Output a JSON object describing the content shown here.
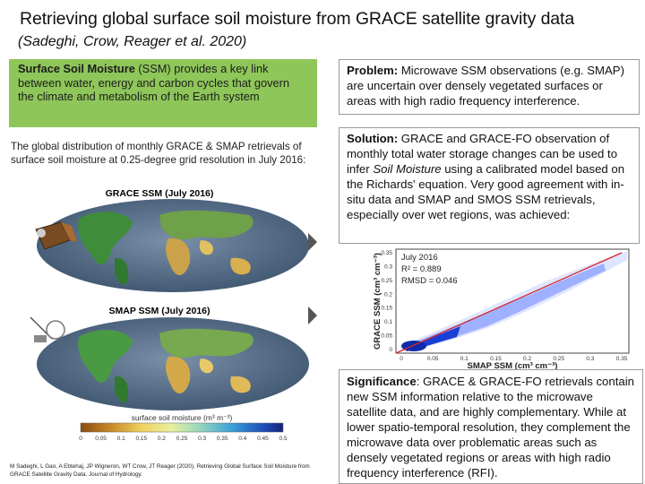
{
  "header": {
    "title": "Retrieving global surface soil moisture from GRACE satellite gravity data",
    "authors": "(Sadeghi, Crow, Reager et al. 2020)"
  },
  "intro": {
    "bold": "Surface Soil Moisture",
    "rest": " (SSM) provides a key link between water, energy and carbon cycles that govern the climate and metabolism of the Earth system"
  },
  "global": {
    "description": "The global distribution of monthly GRACE & SMAP retrievals of surface soil moisture at 0.25-degree grid resolution in July 2016:",
    "grace_map_label": "GRACE SSM (July 2016)",
    "smap_map_label": "SMAP SSM (July 2016)",
    "colorbar_title": "surface soil moisture (m³ m⁻³)",
    "colorbar_ticks": [
      "0",
      "0.05",
      "0.1",
      "0.15",
      "0.2",
      "0.25",
      "0.3",
      "0.35",
      "0.4",
      "0.45",
      "0.5"
    ]
  },
  "problem": {
    "bold": "Problem:",
    "rest": " Microwave SSM observations (e.g. SMAP) are uncertain over densely vegetated surfaces or areas with high radio frequency interference."
  },
  "solution": {
    "bold": "Solution:",
    "part1": " GRACE and GRACE-FO observation of monthly total water storage changes can be used to infer ",
    "italic": "Soil Moisture",
    "part2": " using a calibrated model based on the Richards' equation. Very good agreement with in-situ data and SMAP and SMOS SSM retrievals, especially over wet regions, was achieved:"
  },
  "scatter": {
    "month": "July 2016",
    "r2": "R² = 0.889",
    "rmsd": "RMSD = 0.046",
    "xlabel": "SMAP SSM (cm³ cm⁻³)",
    "ylabel": "GRACE SSM (cm³ cm⁻³)",
    "xticks": [
      "0",
      "0.05",
      "0.1",
      "0.15",
      "0.2",
      "0.25",
      "0.3",
      "0.35"
    ],
    "yticks": [
      "0",
      "0.05",
      "0.1",
      "0.15",
      "0.2",
      "0.25",
      "0.3",
      "0.35"
    ]
  },
  "significance": {
    "bold": "Significance",
    "rest": ": GRACE & GRACE-FO retrievals contain new SSM information relative to the microwave satellite data, and are highly complementary.  While at lower spatio-temporal resolution, they complement the microwave data over problematic areas such as densely vegetated regions or areas with high radio frequency interference (RFI)."
  },
  "citation": "M Sadeghi, L Gao, A Ebtehaj, JP Wigneron, WT Crow, JT Reager (2020). Retrieving Global Surface Soil Moisture from GRACE Satellite Gravity Data. Journal of Hydrology.",
  "colors": {
    "green_box": "#8fc65a",
    "ocean": "#5c7391",
    "fit_line": "#d9232a",
    "scatter_points": "#1a3fd6"
  }
}
